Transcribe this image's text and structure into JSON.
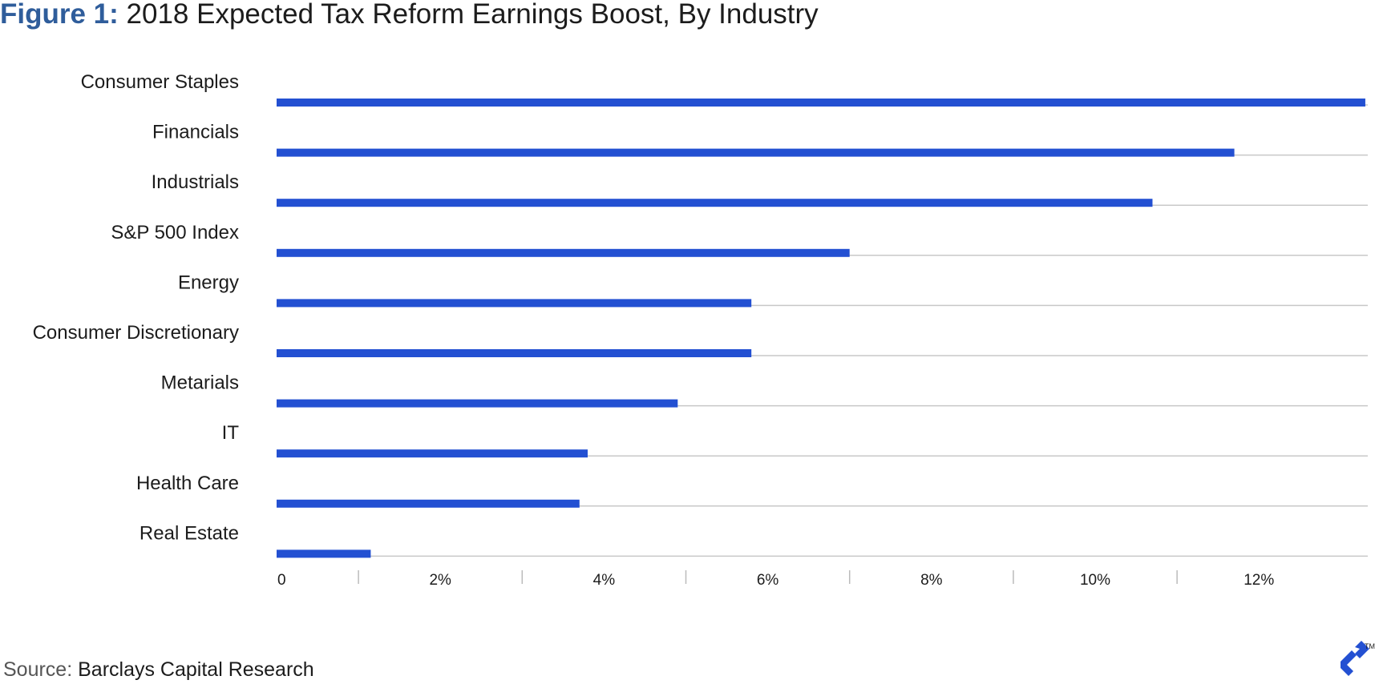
{
  "title": {
    "prefix": "Figure 1:",
    "text": "2018 Expected Tax Reform Earnings Boost, By Industry"
  },
  "source": {
    "label": "Source:",
    "value": "Barclays Capital Research"
  },
  "brand": {
    "icon": "toptal-logo-icon",
    "tm": "TM"
  },
  "chart_data": {
    "type": "bar",
    "orientation": "horizontal",
    "title": "2018 Expected Tax Reform Earnings Boost, By Industry",
    "categories": [
      "Consumer Staples",
      "Financials",
      "Industrials",
      "S&P 500 Index",
      "Energy",
      "Consumer Discretionary",
      "Metarials",
      "IT",
      "Health Care",
      "Real Estate"
    ],
    "values": [
      13.3,
      11.7,
      10.7,
      7.0,
      5.8,
      5.8,
      4.9,
      3.8,
      3.7,
      1.15
    ],
    "unit": "%",
    "xlim": [
      0,
      13.33
    ],
    "xticks": [
      0,
      2,
      4,
      6,
      8,
      10,
      12
    ],
    "xtick_labels": [
      "0",
      "2%",
      "4%",
      "6%",
      "8%",
      "10%",
      "12%"
    ],
    "grid": "horizontal separators under each bar",
    "legend": "none",
    "colors": {
      "bar": "#2350d2",
      "grid": "#c8c8c8",
      "tick": "#bbbbbb"
    }
  }
}
